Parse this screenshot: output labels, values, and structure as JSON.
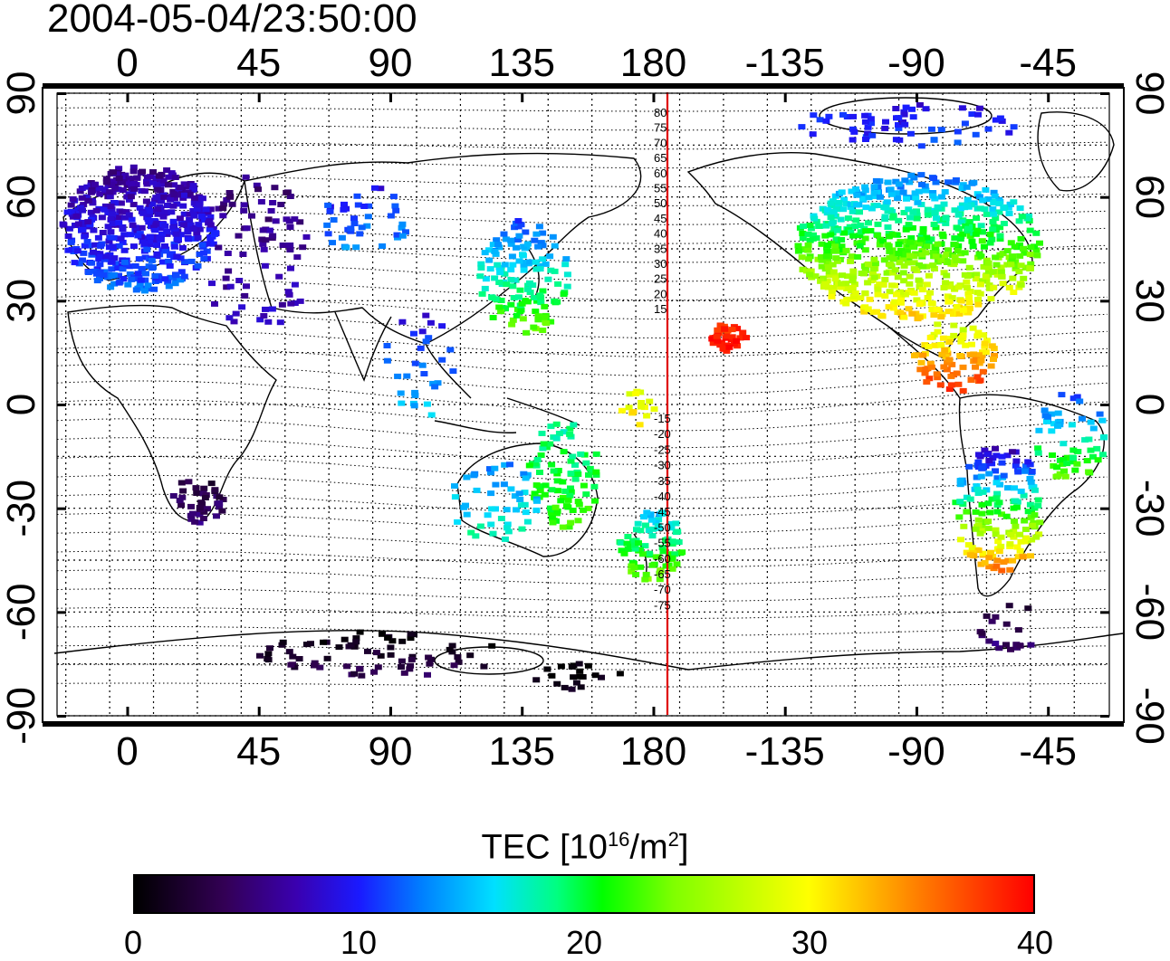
{
  "title": "2004-05-04/23:50:00",
  "map": {
    "lon_labels": [
      "0",
      "45",
      "90",
      "135",
      "180",
      "-135",
      "-90",
      "-45"
    ],
    "lon_values": [
      0,
      45,
      90,
      135,
      180,
      225,
      270,
      315
    ],
    "lat_labels": [
      "90",
      "60",
      "30",
      "0",
      "-30",
      "-60",
      "-90"
    ],
    "lat_values": [
      90,
      60,
      30,
      0,
      -30,
      -60,
      -90
    ],
    "lon_range": [
      -24,
      336
    ],
    "lat_range": [
      -90,
      90
    ],
    "dateline_color": "#e00000",
    "mag_latitude_labels_north": [
      "80",
      "75",
      "70",
      "65",
      "60",
      "55",
      "50",
      "45",
      "40",
      "35",
      "30",
      "25",
      "20",
      "15"
    ],
    "mag_latitude_labels_south": [
      "-15",
      "-20",
      "-25",
      "-30",
      "-35",
      "-40",
      "-45",
      "-50",
      "-55",
      "-60",
      "-65",
      "-70",
      "-75"
    ]
  },
  "colorbar": {
    "title": "TEC  [10",
    "title_exp": "16",
    "title_mid": "/m",
    "title_exp2": "2",
    "title_end": "]",
    "ticks": [
      "0",
      "10",
      "20",
      "30",
      "40"
    ],
    "range": [
      0,
      40
    ]
  }
}
